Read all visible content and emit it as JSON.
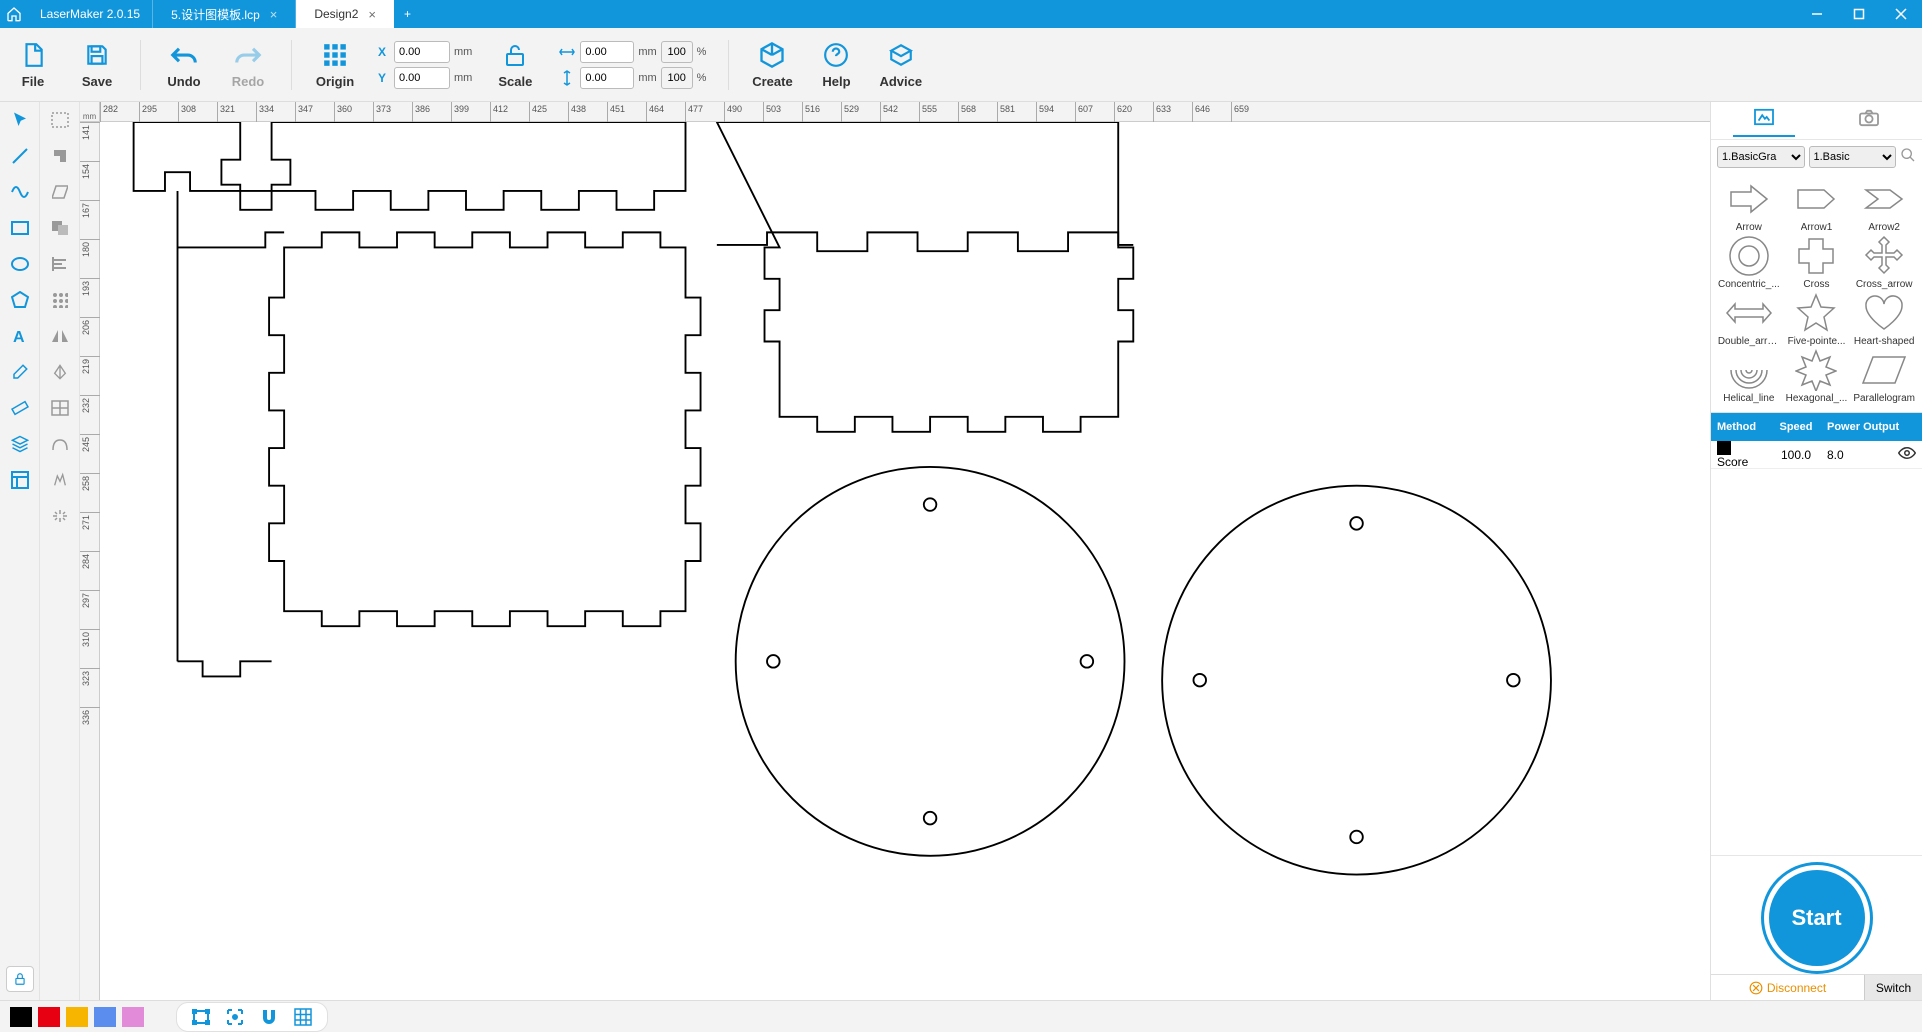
{
  "app": {
    "name": "LaserMaker 2.0.15"
  },
  "tabs": [
    {
      "label": "5.设计图模板.lcp",
      "active": false
    },
    {
      "label": "Design2",
      "active": true
    }
  ],
  "toolbar": {
    "file": "File",
    "save": "Save",
    "undo": "Undo",
    "redo": "Redo",
    "origin": "Origin",
    "scale": "Scale",
    "create": "Create",
    "help": "Help",
    "advice": "Advice",
    "x_label": "X",
    "y_label": "Y",
    "x_value": "0.00",
    "y_value": "0.00",
    "w_value": "0.00",
    "h_value": "0.00",
    "w_pct": "100",
    "h_pct": "100",
    "unit_mm": "mm",
    "unit_pct": "%"
  },
  "ruler": {
    "unit": "mm",
    "h_start": 282,
    "h_step": 13,
    "h_count": 30,
    "v_start": 141,
    "v_step": 13,
    "v_count": 16
  },
  "shapes_panel": {
    "filter1": "1.BasicGraphics",
    "filter1_display": "1.BasicGra",
    "filter2": "1.Basic",
    "shapes": [
      {
        "name": "Arrow"
      },
      {
        "name": "Arrow1"
      },
      {
        "name": "Arrow2"
      },
      {
        "name": "Concentric_..."
      },
      {
        "name": "Cross"
      },
      {
        "name": "Cross_arrow"
      },
      {
        "name": "Double_arrow"
      },
      {
        "name": "Five-pointe..."
      },
      {
        "name": "Heart-shaped"
      },
      {
        "name": "Helical_line"
      },
      {
        "name": "Hexagonal_..."
      },
      {
        "name": "Parallelogram"
      }
    ]
  },
  "layers": {
    "head_method": "Method",
    "head_speed": "Speed",
    "head_power": "Power Output",
    "rows": [
      {
        "color": "#000000",
        "method": "Score",
        "speed": "100.0",
        "power": "8.0"
      }
    ]
  },
  "start_label": "Start",
  "connection": {
    "status": "Disconnect",
    "switch": "Switch"
  },
  "bottom_colors": [
    "#000000",
    "#e60012",
    "#f8b500",
    "#5b8def",
    "#e18bd9"
  ],
  "colors": {
    "primary": "#1296db",
    "titlebar": "#1296db",
    "toolbar_bg": "#f3f3f3",
    "text": "#333333",
    "muted": "#999999",
    "border": "#dddddd"
  }
}
